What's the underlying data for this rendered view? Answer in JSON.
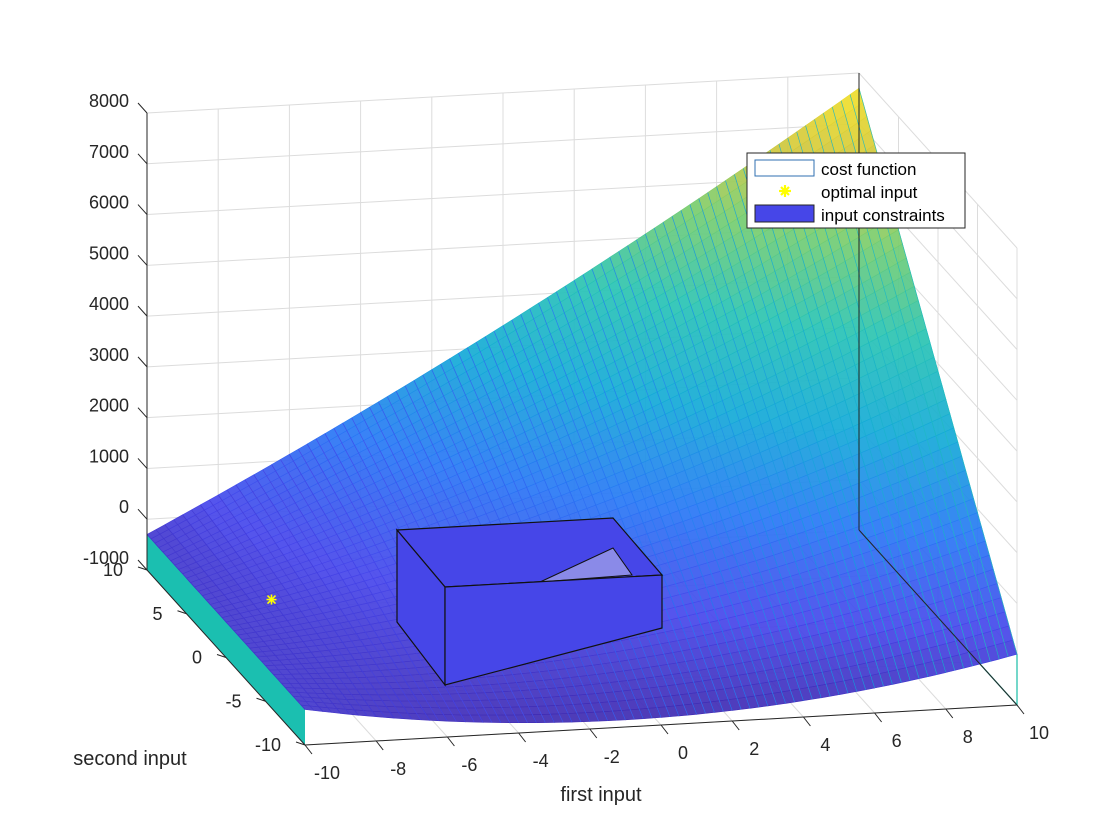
{
  "chart_data": {
    "type": "surface3d",
    "title": "",
    "xlabel": "first input",
    "ylabel": "second input",
    "zlabel": "",
    "xlim": [
      -10,
      10
    ],
    "ylim": [
      -10,
      10
    ],
    "zlim": [
      -1000,
      8000
    ],
    "x_ticks": [
      "-10",
      "-8",
      "-6",
      "-4",
      "-2",
      "0",
      "2",
      "4",
      "6",
      "8",
      "10"
    ],
    "y_ticks": [
      "-10",
      "-5",
      "0",
      "5",
      "10"
    ],
    "z_ticks": [
      "-1000",
      "0",
      "1000",
      "2000",
      "3000",
      "4000",
      "5000",
      "6000",
      "7000",
      "8000"
    ],
    "grid": true,
    "colormap": "parula",
    "surface": {
      "name": "cost function",
      "corner_values": [
        {
          "x": -10,
          "y": 10,
          "z": -300
        },
        {
          "x": -10,
          "y": -10,
          "z": -300
        },
        {
          "x": 10,
          "y": -10,
          "z": 0
        },
        {
          "x": 10,
          "y": 10,
          "z": 7700
        }
      ],
      "min_value": -1000
    },
    "optimal_input": {
      "name": "optimal input",
      "x": -8.5,
      "y": 1,
      "z": -1000,
      "marker": "asterisk",
      "color": "#ffff00"
    },
    "input_constraints": {
      "name": "input constraints",
      "color": "#4646e8"
    },
    "legend": {
      "position": "top-right",
      "entries": [
        "cost function",
        "optimal input",
        "input constraints"
      ]
    }
  },
  "colors": {
    "surface_low": "#3b1ed0",
    "surface_high": "#f5e03a",
    "box_fill": "#4646e8",
    "marker": "#ffff00",
    "grid": "#dcdcdc",
    "axis": "#262626"
  }
}
